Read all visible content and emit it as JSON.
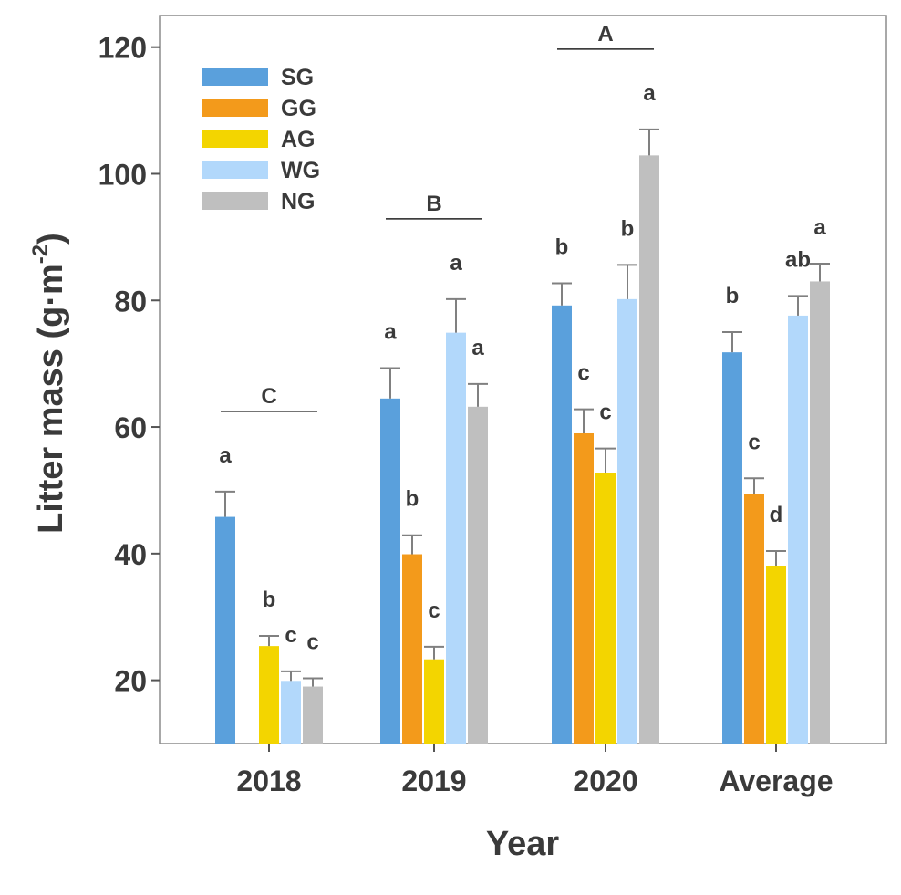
{
  "chart_data": {
    "type": "bar",
    "title": "",
    "xlabel": "Year",
    "ylabel_main": "Litter mass (g·m",
    "ylabel_sup": "-2",
    "ylabel_end": ")",
    "ylim": [
      10,
      125
    ],
    "yticks": [
      20,
      40,
      60,
      80,
      100,
      120
    ],
    "categories": [
      "2018",
      "2019",
      "2020",
      "Average"
    ],
    "legend_position": "top-left",
    "series": [
      {
        "name": "SG",
        "color": "#5aa0dc",
        "values": [
          45.8,
          64.5,
          79.2,
          71.8
        ],
        "errors": [
          4.0,
          4.8,
          3.5,
          3.2
        ],
        "letters": [
          "a",
          "a",
          "b",
          "b"
        ]
      },
      {
        "name": "GG",
        "color": "#f39a1b",
        "values": [
          null,
          39.9,
          59.0,
          49.4
        ],
        "errors": [
          null,
          3.0,
          3.8,
          2.5
        ],
        "letters": [
          null,
          "b",
          "c",
          "c"
        ]
      },
      {
        "name": "AG",
        "color": "#f3d500",
        "values": [
          25.4,
          23.3,
          52.8,
          38.1
        ],
        "errors": [
          1.6,
          2.0,
          3.8,
          2.3
        ],
        "letters": [
          "b",
          "c",
          "c",
          "d"
        ]
      },
      {
        "name": "WG",
        "color": "#b2d8fb",
        "values": [
          19.9,
          74.9,
          80.2,
          77.6
        ],
        "errors": [
          1.5,
          5.3,
          5.4,
          3.1
        ],
        "letters": [
          "c",
          "a",
          "b",
          "ab"
        ]
      },
      {
        "name": "NG",
        "color": "#bfbfbf",
        "values": [
          19.0,
          63.2,
          102.9,
          83.0
        ],
        "errors": [
          1.3,
          3.6,
          4.1,
          2.8
        ],
        "letters": [
          "c",
          "a",
          "a",
          "a"
        ]
      }
    ],
    "group_letters": [
      {
        "category": "2018",
        "label": "C"
      },
      {
        "category": "2019",
        "label": "B"
      },
      {
        "category": "2020",
        "label": "A"
      }
    ]
  }
}
